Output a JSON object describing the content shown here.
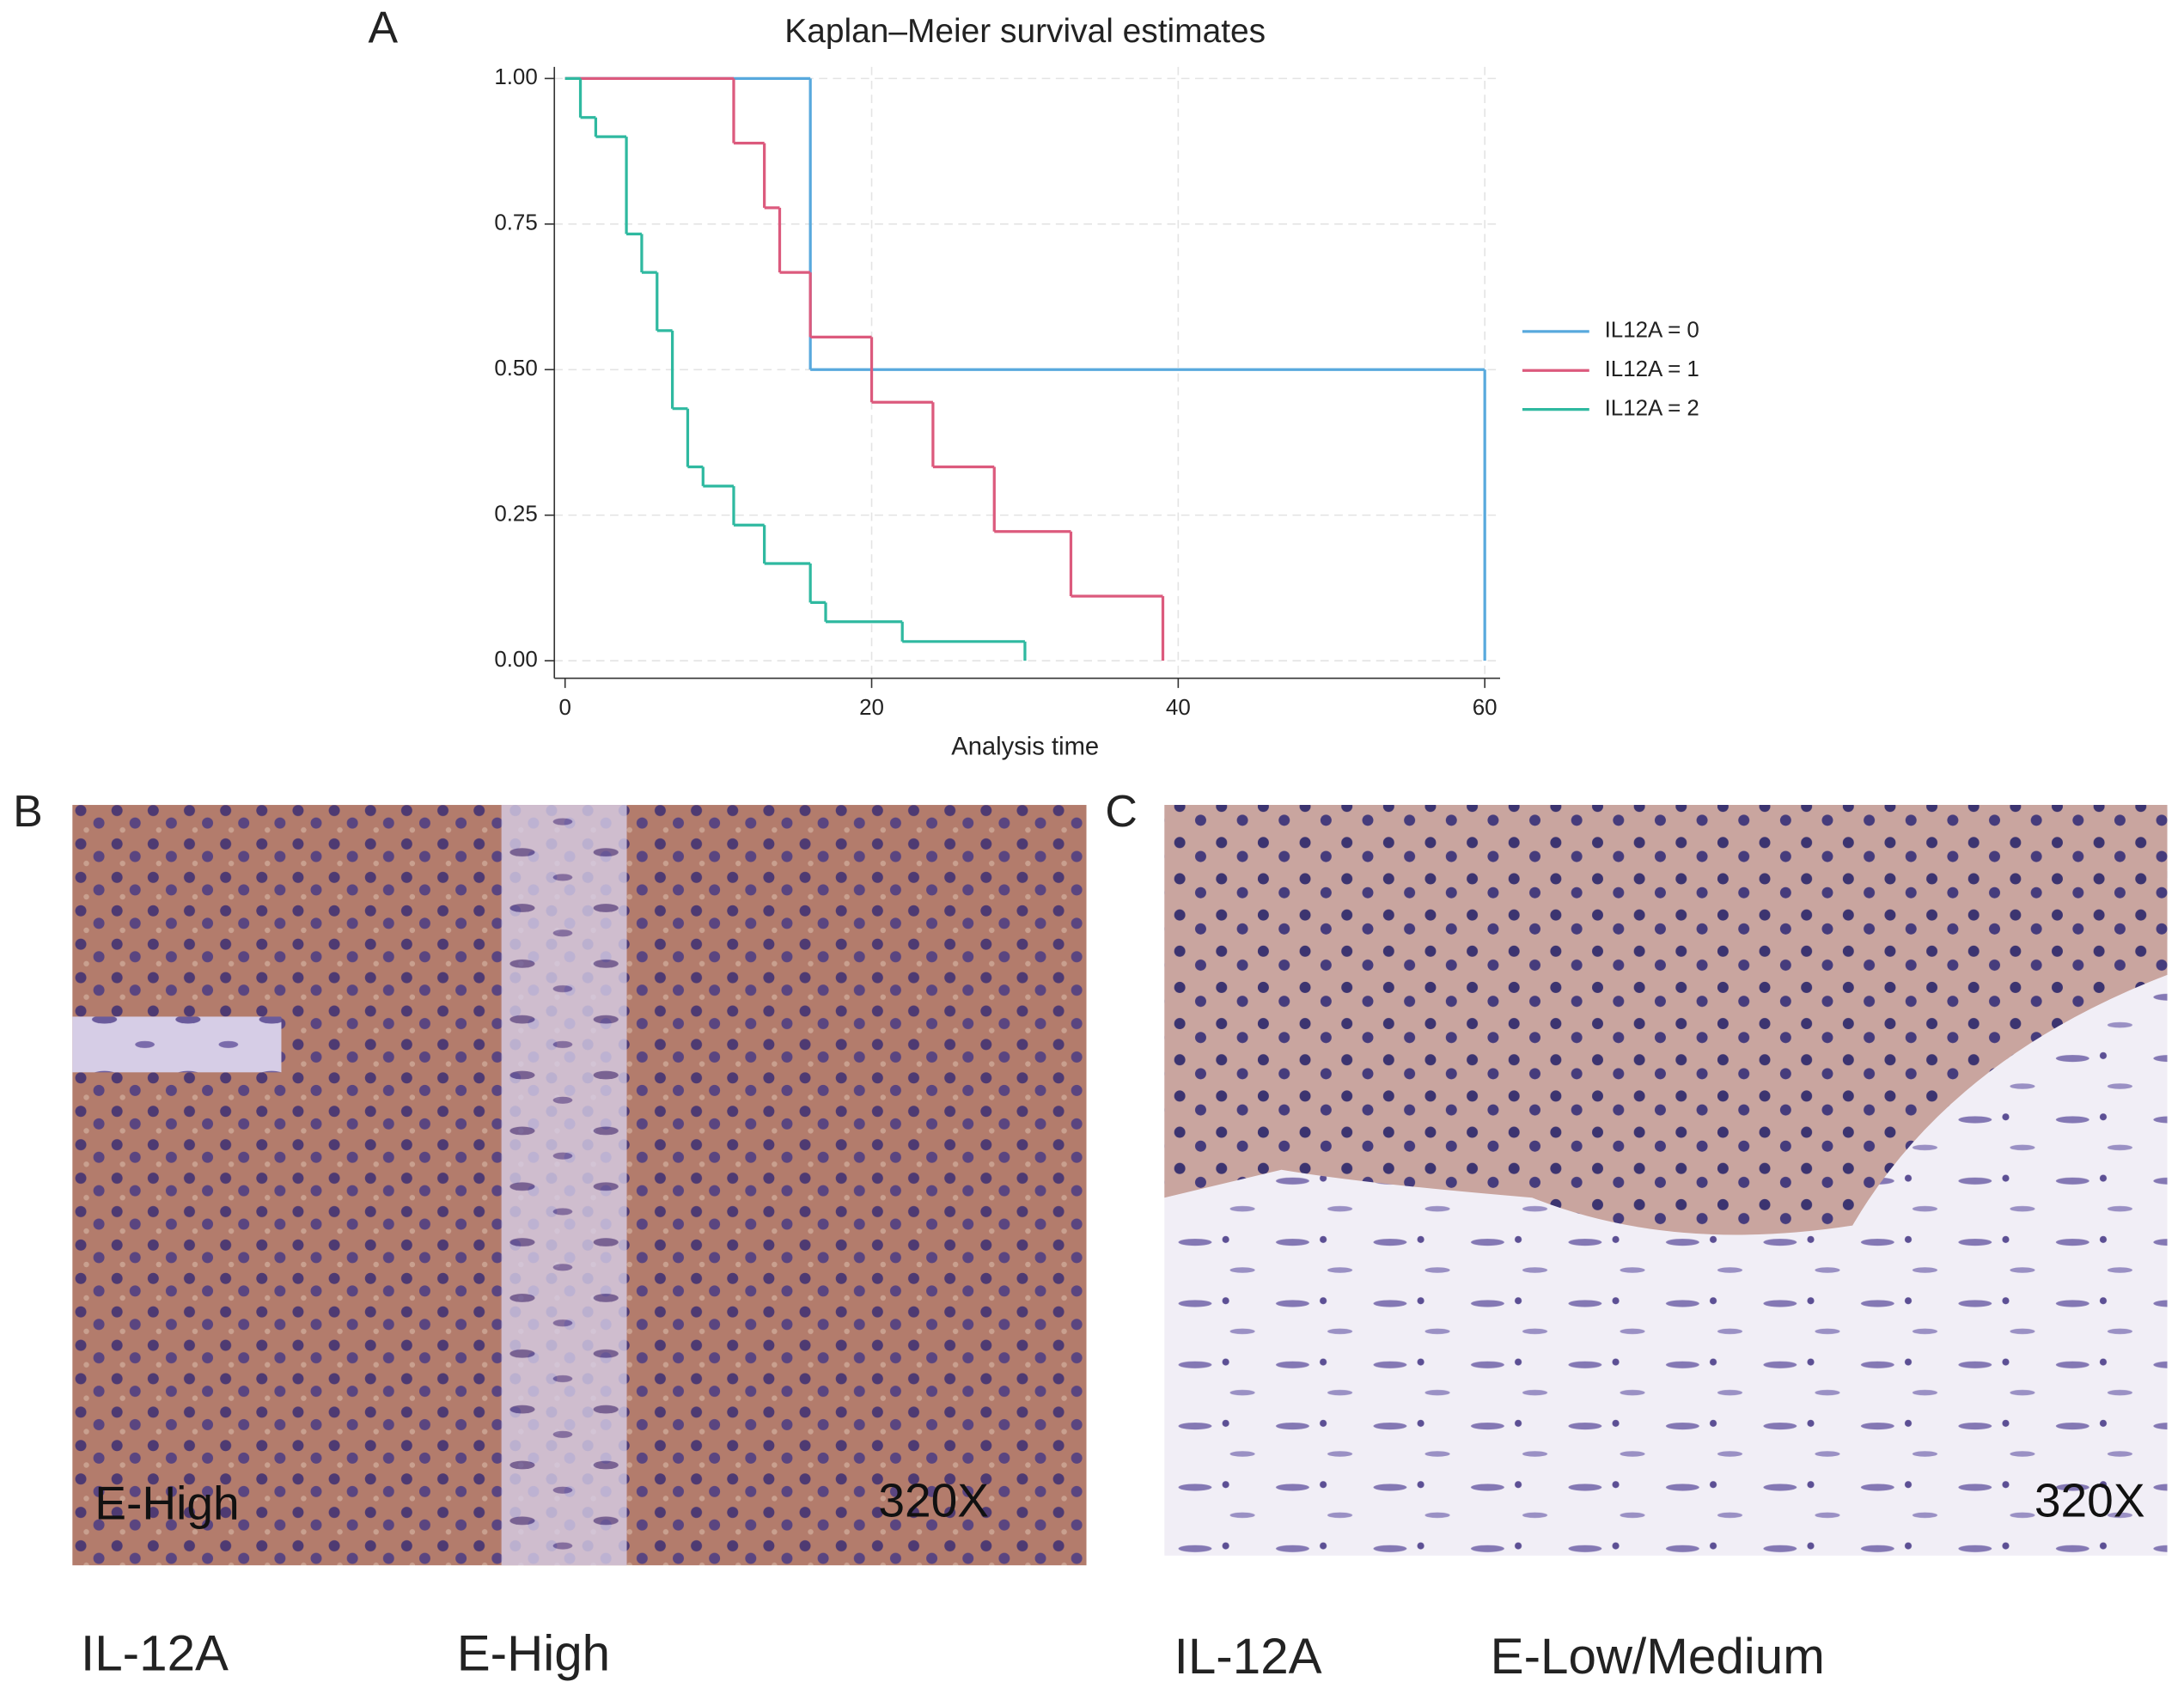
{
  "chart_data": {
    "type": "step",
    "title": "Kaplan–Meier survival estimates",
    "x_label": "Analysis time",
    "xlim": [
      -0.7,
      61
    ],
    "xticks": [
      0,
      20,
      40,
      60
    ],
    "ylim": [
      -0.03,
      1.02
    ],
    "yticks": [
      {
        "value": 0,
        "label": "0.00"
      },
      {
        "value": 0.25,
        "label": "0.25"
      },
      {
        "value": 0.5,
        "label": "0.50"
      },
      {
        "value": 0.75,
        "label": "0.75"
      },
      {
        "value": 1,
        "label": "1.00"
      }
    ],
    "grid": true,
    "legend": "right",
    "series": [
      {
        "name": "IL12A = 0",
        "color": "#58a9dd",
        "x": [
          0,
          16,
          60
        ],
        "values": [
          1,
          0.5,
          0
        ]
      },
      {
        "name": "IL12A = 1",
        "color": "#dc5a7d",
        "x": [
          0,
          11,
          13,
          14,
          16,
          20,
          24,
          28,
          33,
          39
        ],
        "values": [
          1,
          0.889,
          0.778,
          0.667,
          0.556,
          0.444,
          0.333,
          0.222,
          0.111,
          0
        ]
      },
      {
        "name": "IL12A = 2",
        "color": "#2fb9a0",
        "x": [
          0,
          1,
          2,
          4,
          5,
          6,
          7,
          8,
          9,
          11,
          13,
          16,
          17,
          22,
          30
        ],
        "values": [
          1,
          0.933,
          0.9,
          0.733,
          0.667,
          0.567,
          0.433,
          0.333,
          0.3,
          0.233,
          0.167,
          0.1,
          0.067,
          0.033,
          0
        ]
      }
    ]
  },
  "panel_labels": [
    "A",
    "B",
    "C"
  ],
  "images": [
    {
      "overlay": [
        "E-High",
        "320X"
      ],
      "caption": [
        "IL-12A",
        "E-High"
      ]
    },
    {
      "overlay": [
        "320X"
      ],
      "caption": [
        "IL-12A",
        "E-Low/Medium"
      ]
    }
  ]
}
